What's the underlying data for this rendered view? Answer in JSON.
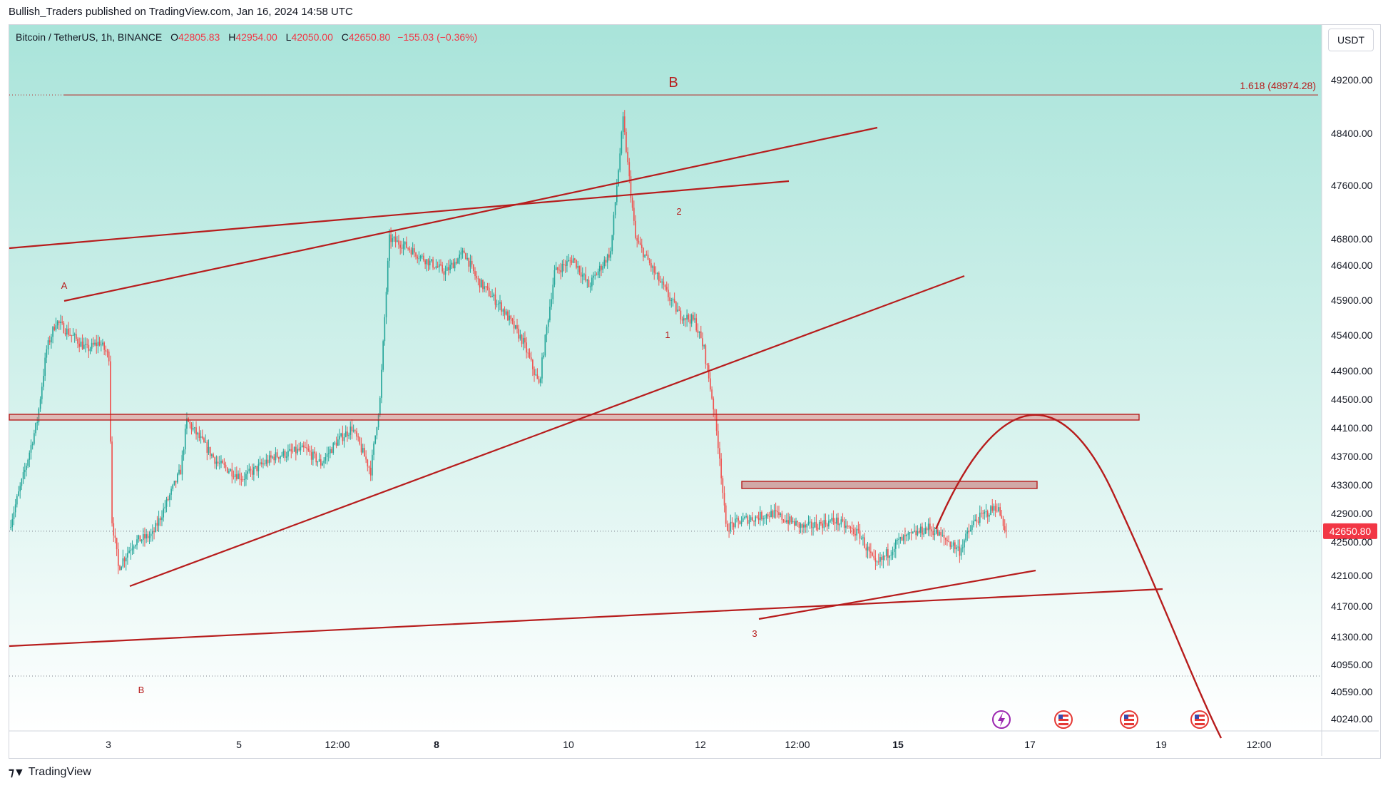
{
  "publisher_line": "Bullish_Traders published on TradingView.com, Jan 16, 2024 14:58 UTC",
  "legend": {
    "symbol": "Bitcoin / TetherUS, 1h, BINANCE",
    "o_label": "O",
    "o": "42805.83",
    "h_label": "H",
    "h": "42954.00",
    "l_label": "L",
    "l": "42050.00",
    "c_label": "C",
    "c": "42650.80",
    "change": "−155.03 (−0.36%)"
  },
  "unit_label": "USDT",
  "footer_brand": "TradingView",
  "colors": {
    "bg_top": "#a9e4da",
    "bg_bottom": "#ffffff",
    "drawing": "#b71c1c",
    "up_candle": "#26a69a",
    "down_candle": "#ef5350",
    "price_tag": "#f23645"
  },
  "chart_data": {
    "type": "candlestick",
    "timeframe": "1h",
    "x_ticks": [
      "3",
      "5",
      "12:00",
      "8",
      "10",
      "12",
      "12:00",
      "15",
      "17",
      "19",
      "12:00"
    ],
    "y_ticks": [
      "49200.00",
      "48400.00",
      "47600.00",
      "46800.00",
      "46400.00",
      "45900.00",
      "45400.00",
      "44900.00",
      "44500.00",
      "44100.00",
      "43700.00",
      "43300.00",
      "42900.00",
      "42500.00",
      "42100.00",
      "41700.00",
      "41300.00",
      "40950.00",
      "40590.00",
      "40240.00"
    ],
    "last_price": "42650.80",
    "fib_label": "1.618 (48974.28)",
    "fib_level": 48974.28,
    "wave_labels": [
      "A",
      "B",
      "B",
      "1",
      "2",
      "3"
    ],
    "price_path": [
      [
        0,
        42700
      ],
      [
        10,
        43500
      ],
      [
        18,
        44200
      ],
      [
        24,
        45200
      ],
      [
        30,
        45600
      ],
      [
        40,
        45400
      ],
      [
        50,
        45200
      ],
      [
        58,
        45300
      ],
      [
        64,
        45100
      ],
      [
        66,
        42800
      ],
      [
        70,
        42200
      ],
      [
        80,
        42500
      ],
      [
        92,
        42600
      ],
      [
        100,
        43000
      ],
      [
        110,
        43500
      ],
      [
        114,
        44200
      ],
      [
        124,
        43900
      ],
      [
        134,
        43600
      ],
      [
        150,
        43400
      ],
      [
        170,
        43700
      ],
      [
        190,
        43800
      ],
      [
        200,
        43600
      ],
      [
        210,
        43900
      ],
      [
        220,
        44100
      ],
      [
        232,
        43500
      ],
      [
        238,
        44500
      ],
      [
        244,
        46800
      ],
      [
        254,
        46700
      ],
      [
        266,
        46500
      ],
      [
        280,
        46300
      ],
      [
        292,
        46600
      ],
      [
        300,
        46200
      ],
      [
        316,
        45800
      ],
      [
        330,
        45300
      ],
      [
        340,
        44700
      ],
      [
        350,
        46300
      ],
      [
        362,
        46500
      ],
      [
        372,
        46100
      ],
      [
        386,
        46600
      ],
      [
        394,
        48600
      ],
      [
        402,
        46800
      ],
      [
        414,
        46300
      ],
      [
        430,
        45700
      ],
      [
        440,
        45600
      ],
      [
        446,
        45200
      ],
      [
        452,
        44400
      ],
      [
        456,
        43700
      ],
      [
        460,
        42700
      ],
      [
        470,
        42800
      ],
      [
        490,
        42900
      ],
      [
        510,
        42700
      ],
      [
        530,
        42800
      ],
      [
        546,
        42600
      ],
      [
        556,
        42200
      ],
      [
        570,
        42500
      ],
      [
        590,
        42700
      ],
      [
        610,
        42400
      ],
      [
        620,
        42800
      ],
      [
        634,
        43000
      ],
      [
        640,
        42650
      ]
    ],
    "drawings": {
      "support_resistance": [
        44250,
        43300
      ],
      "notes": "trend lines, wedge lines and projected arc as drawn on chart"
    }
  }
}
